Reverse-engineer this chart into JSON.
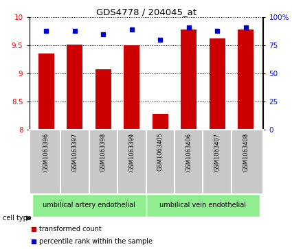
{
  "title": "GDS4778 / 204045_at",
  "samples": [
    "GSM1063396",
    "GSM1063397",
    "GSM1063398",
    "GSM1063399",
    "GSM1063405",
    "GSM1063406",
    "GSM1063407",
    "GSM1063408"
  ],
  "transformed_counts": [
    9.35,
    9.52,
    9.07,
    9.5,
    8.28,
    9.78,
    9.62,
    9.78
  ],
  "percentile_ranks": [
    88,
    88,
    85,
    89,
    80,
    91,
    88,
    91
  ],
  "ylim_left": [
    8,
    10
  ],
  "ylim_right": [
    0,
    100
  ],
  "yticks_left": [
    8,
    8.5,
    9,
    9.5,
    10
  ],
  "yticks_right": [
    0,
    25,
    50,
    75,
    100
  ],
  "ytick_labels_right": [
    "0",
    "25",
    "50",
    "75",
    "100%"
  ],
  "bar_color": "#cc0000",
  "dot_color": "#0000cc",
  "cell_type_groups": [
    {
      "label": "umbilical artery endothelial",
      "start": 0,
      "end": 4
    },
    {
      "label": "umbilical vein endothelial",
      "start": 4,
      "end": 8
    }
  ],
  "cell_type_label": "cell type",
  "group_color": "#90ee90",
  "sample_bg_color": "#c8c8c8",
  "legend_items": [
    {
      "label": "transformed count",
      "color": "#cc0000",
      "marker": "s"
    },
    {
      "label": "percentile rank within the sample",
      "color": "#0000cc",
      "marker": "s"
    }
  ],
  "bar_width": 0.55,
  "fig_width": 4.25,
  "fig_height": 3.63
}
